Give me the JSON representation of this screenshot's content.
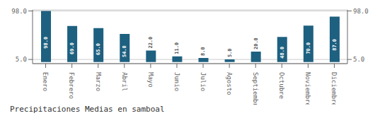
{
  "chart_data": {
    "type": "bar",
    "title": "Precipitaciones Medias en samboal",
    "categories": [
      "Enero",
      "Febrero",
      "Marzo",
      "Abril",
      "Mayo",
      "Junio",
      "Julio",
      "Agosto",
      "Septiembre",
      "Octubre",
      "Noviembre",
      "Diciembre"
    ],
    "values": [
      98.0,
      69.0,
      65.0,
      54.0,
      22.0,
      11.0,
      8.0,
      5.0,
      20.0,
      48.0,
      70.0,
      87.0
    ],
    "value_labels": [
      "98.0",
      "69.0",
      "65.0",
      "54.0",
      "22.0",
      "11.0",
      "8.0",
      "5.0",
      "20.0",
      "48.0",
      "70.0",
      "87.0"
    ],
    "color": "#1e6080",
    "ylim": [
      -3.0,
      100.0
    ],
    "yticks": [
      {
        "value": 5.0,
        "label": "5.0"
      },
      {
        "value": 98.0,
        "label": "98.0"
      }
    ],
    "y2lim": [
      -3.0,
      100.0
    ],
    "y2ticks": [
      {
        "value": 5.0,
        "label": "5.0"
      },
      {
        "value": 98.0,
        "label": "98.0"
      }
    ],
    "grid": true,
    "data_labels": true
  }
}
